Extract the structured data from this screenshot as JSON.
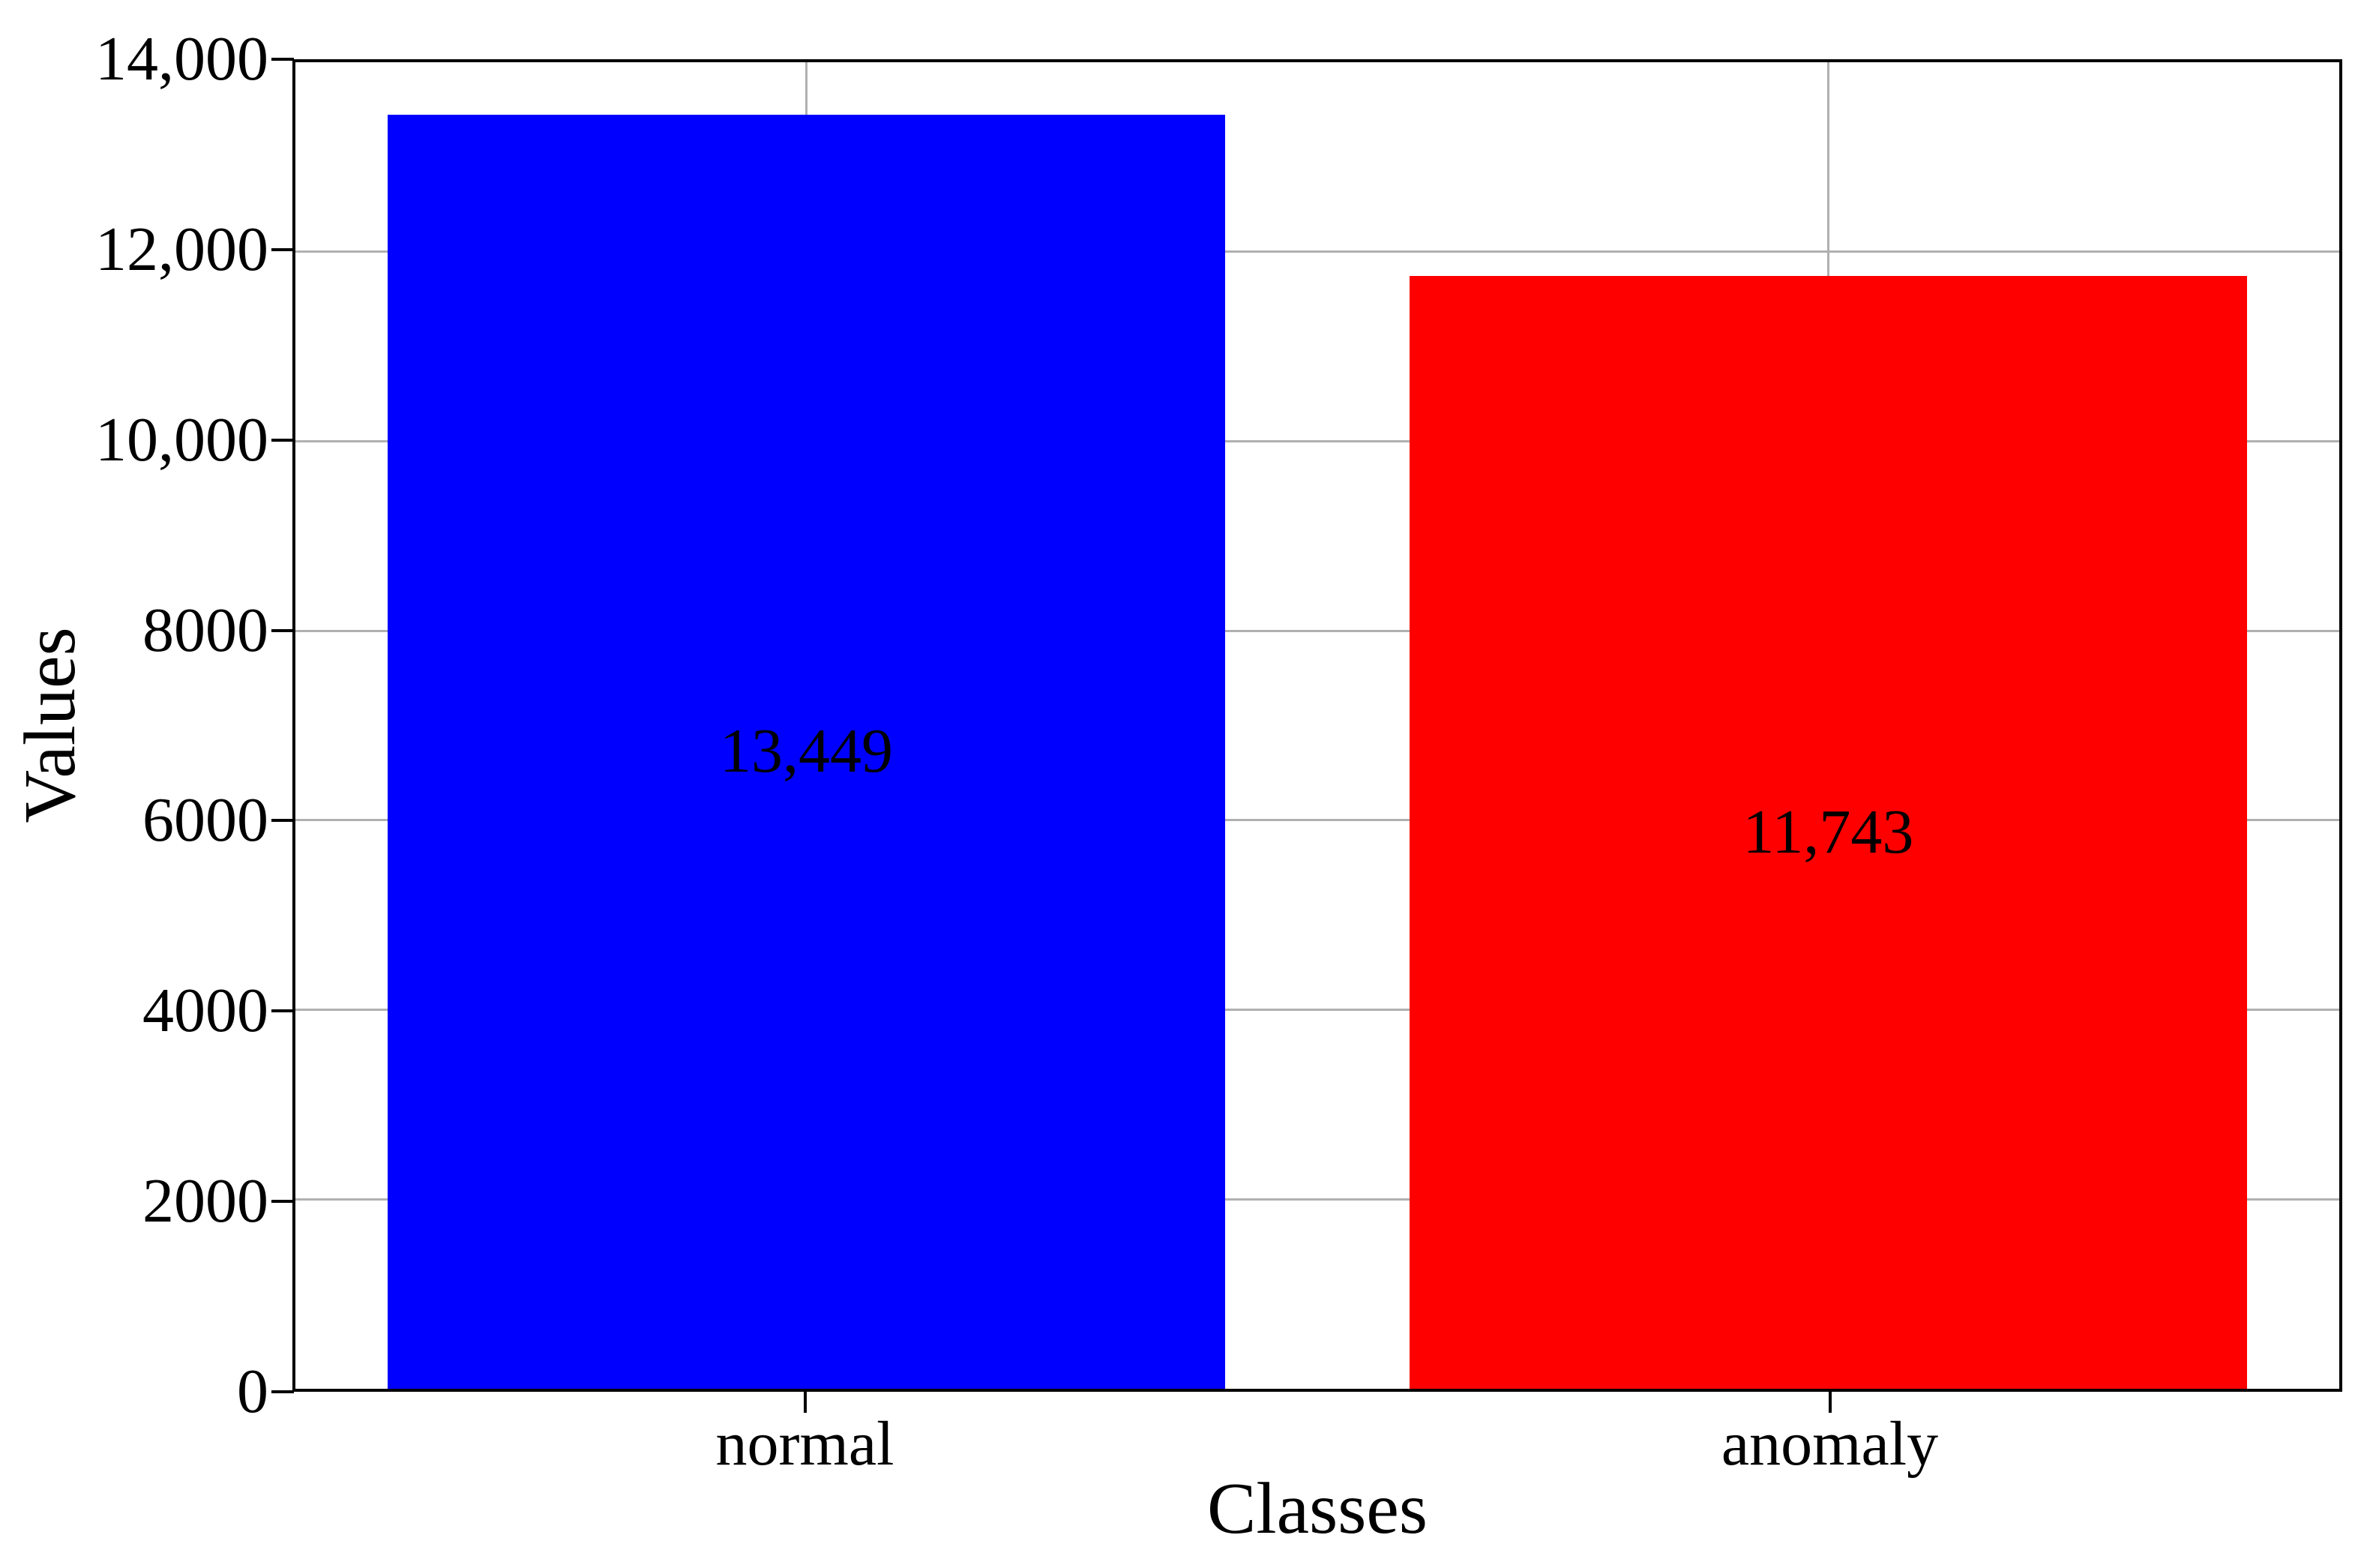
{
  "chart_data": {
    "type": "bar",
    "title": "",
    "xlabel": "Classes",
    "ylabel": "Values",
    "categories": [
      "normal",
      "anomaly"
    ],
    "values": [
      13449,
      11743
    ],
    "bar_labels": [
      "13,449",
      "11,743"
    ],
    "bar_colors": [
      "#0000ff",
      "#ff0000"
    ],
    "ylim": [
      0,
      14000
    ],
    "yticks": [
      {
        "value": 0,
        "label": "0"
      },
      {
        "value": 2000,
        "label": "2000"
      },
      {
        "value": 4000,
        "label": "4000"
      },
      {
        "value": 6000,
        "label": "6000"
      },
      {
        "value": 8000,
        "label": "8000"
      },
      {
        "value": 10000,
        "label": "10,000"
      },
      {
        "value": 12000,
        "label": "12,000"
      },
      {
        "value": 14000,
        "label": "14,000"
      }
    ],
    "grid": true,
    "grid_color": "#b0b0b0",
    "axis_color": "#000000",
    "text_color": "#000000",
    "background_color": "#ffffff",
    "bar_width_fraction": 0.41,
    "value_label_position": "center-of-bar",
    "legend_position": "none"
  }
}
